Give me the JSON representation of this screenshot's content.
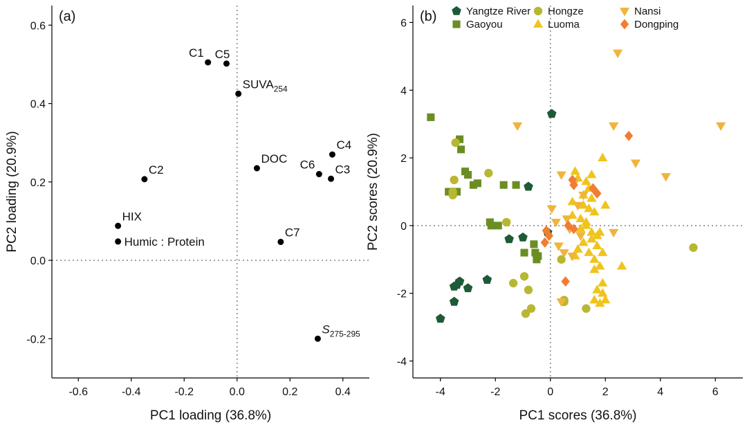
{
  "chart_data": [
    {
      "panel_label": "(a)",
      "type": "scatter",
      "xlabel": "PC1 loading (36.8%)",
      "ylabel": "PC2 loading (20.9%)",
      "xlim": [
        -0.7,
        0.5
      ],
      "ylim": [
        -0.3,
        0.65
      ],
      "xticks": [
        {
          "value": -0.6,
          "label": "-0.6"
        },
        {
          "value": -0.4,
          "label": "-0.4"
        },
        {
          "value": -0.2,
          "label": "-0.2"
        },
        {
          "value": 0.0,
          "label": "0.0"
        },
        {
          "value": 0.2,
          "label": "0.2"
        },
        {
          "value": 0.4,
          "label": "0.4"
        }
      ],
      "yticks": [
        {
          "value": -0.2,
          "label": "-0.2"
        },
        {
          "value": 0.0,
          "label": "0.0"
        },
        {
          "value": 0.2,
          "label": "0.2"
        },
        {
          "value": 0.4,
          "label": "0.4"
        },
        {
          "value": 0.6,
          "label": "0.6"
        }
      ],
      "reference_lines": {
        "x": 0,
        "y": 0
      },
      "points": [
        {
          "label": "C1",
          "x": -0.11,
          "y": 0.505,
          "label_pos": "above-left"
        },
        {
          "label": "C5",
          "x": -0.04,
          "y": 0.502,
          "label_pos": "above"
        },
        {
          "label": "SUVA",
          "sub": "254",
          "x": 0.005,
          "y": 0.425,
          "label_pos": "above-right"
        },
        {
          "label": "C2",
          "x": -0.35,
          "y": 0.207,
          "label_pos": "above-right"
        },
        {
          "label": "DOC",
          "x": 0.075,
          "y": 0.235,
          "label_pos": "above-right"
        },
        {
          "label": "C4",
          "x": 0.36,
          "y": 0.27,
          "label_pos": "above-right"
        },
        {
          "label": "C6",
          "x": 0.31,
          "y": 0.22,
          "label_pos": "above-left"
        },
        {
          "label": "C3",
          "x": 0.355,
          "y": 0.208,
          "label_pos": "above-right"
        },
        {
          "label": "HIX",
          "x": -0.45,
          "y": 0.088,
          "label_pos": "above-right"
        },
        {
          "label": "Humic : Protein",
          "x": -0.45,
          "y": 0.048,
          "label_pos": "right"
        },
        {
          "label": "C7",
          "x": 0.165,
          "y": 0.047,
          "label_pos": "above-right"
        },
        {
          "label": "S",
          "sub": "275-295",
          "x": 0.305,
          "y": -0.2,
          "label_pos": "above-right",
          "italic": true
        }
      ]
    },
    {
      "panel_label": "(b)",
      "type": "scatter",
      "xlabel": "PC1 scores (36.8%)",
      "ylabel": "PC2 scores (20.9%)",
      "xlim": [
        -5,
        7
      ],
      "ylim": [
        -4.5,
        6.5
      ],
      "xticks": [
        {
          "value": -4,
          "label": "-4"
        },
        {
          "value": -2,
          "label": "-2"
        },
        {
          "value": 0,
          "label": "0"
        },
        {
          "value": 2,
          "label": "2"
        },
        {
          "value": 4,
          "label": "4"
        },
        {
          "value": 6,
          "label": "6"
        }
      ],
      "yticks": [
        {
          "value": -4,
          "label": "-4"
        },
        {
          "value": -2,
          "label": "-2"
        },
        {
          "value": 0,
          "label": "0"
        },
        {
          "value": 2,
          "label": "2"
        },
        {
          "value": 4,
          "label": "4"
        },
        {
          "value": 6,
          "label": "6"
        }
      ],
      "reference_lines": {
        "x": 0,
        "y": 0
      },
      "legend_position": "top",
      "series": [
        {
          "name": "Yangtze River",
          "marker": "pentagon",
          "color": "#1e5a37",
          "x": [
            -4.0,
            -3.5,
            -3.4,
            -3.3,
            -3.5,
            -3.0,
            -2.3,
            -1.5,
            -1.0,
            -0.8,
            -0.1,
            0.05
          ],
          "y": [
            -2.75,
            -1.8,
            -1.75,
            -1.65,
            -2.25,
            -1.85,
            -1.6,
            -0.4,
            -0.35,
            1.15,
            -0.2,
            3.3
          ]
        },
        {
          "name": "Gaoyou",
          "marker": "square",
          "color": "#6b8e23",
          "x": [
            -4.35,
            -3.3,
            -3.25,
            -3.1,
            -3.0,
            -2.8,
            -2.65,
            -2.2,
            -2.15,
            -1.9,
            -1.7,
            -1.25,
            -0.95,
            -0.6,
            -0.55,
            -0.5,
            -0.45,
            -3.7,
            -3.5,
            -3.4
          ],
          "y": [
            3.2,
            2.55,
            2.25,
            1.6,
            1.5,
            1.2,
            1.25,
            0.1,
            0.0,
            0.0,
            1.2,
            1.2,
            -0.8,
            -0.55,
            -0.8,
            -1.0,
            -0.9,
            1.0,
            1.0,
            1.0
          ]
        },
        {
          "name": "Hongze",
          "marker": "circle",
          "color": "#b8b732",
          "x": [
            -3.45,
            -3.5,
            -3.55,
            -3.55,
            -2.25,
            -1.6,
            -1.35,
            -0.95,
            -0.9,
            -0.8,
            -0.7,
            0.4,
            0.5,
            0.5,
            1.3,
            5.2
          ],
          "y": [
            2.45,
            1.35,
            1.0,
            0.9,
            1.55,
            0.1,
            -1.7,
            -1.5,
            -2.6,
            -1.9,
            -2.45,
            -1.0,
            -2.2,
            -2.25,
            -2.45,
            -0.65
          ]
        },
        {
          "name": "Luoma",
          "marker": "triangle-up",
          "color": "#f0c41e",
          "x": [
            0.9,
            1.0,
            1.3,
            1.5,
            1.9,
            0.8,
            1.2,
            1.4,
            1.6,
            1.1,
            1.3,
            1.5,
            1.7,
            1.2,
            1.0,
            0.9,
            1.4,
            1.6,
            1.8,
            1.9,
            1.7,
            1.9,
            2.0,
            1.8,
            1.6,
            2.6,
            1.9,
            1.7,
            1.5,
            1.1,
            1.3,
            0.8,
            1.2,
            1.4,
            1.5,
            2.0,
            1.8,
            1.6
          ],
          "y": [
            1.6,
            1.4,
            1.3,
            1.5,
            2.0,
            0.7,
            0.6,
            0.5,
            0.4,
            0.2,
            0.0,
            -0.2,
            -0.3,
            -0.5,
            -0.7,
            -0.9,
            -0.8,
            -1.0,
            -1.2,
            -1.7,
            -1.9,
            -2.0,
            -2.2,
            -2.3,
            -2.2,
            -1.2,
            -0.8,
            -0.6,
            -0.4,
            -0.1,
            0.1,
            0.3,
            0.9,
            1.1,
            0.8,
            0.6,
            -0.2,
            -1.3
          ]
        },
        {
          "name": "Nansi",
          "marker": "triangle-down",
          "color": "#f0b43c",
          "x": [
            -1.2,
            2.45,
            2.3,
            6.2,
            3.1,
            4.2,
            2.3,
            0.05,
            0.4,
            0.5,
            0.8,
            1.2,
            0.6,
            0.9,
            0.3,
            1.1,
            0.2,
            0.7,
            1.0,
            0.4
          ],
          "y": [
            2.95,
            5.1,
            2.95,
            2.95,
            1.85,
            1.45,
            -0.2,
            0.5,
            1.5,
            -0.8,
            -0.9,
            0.9,
            0.2,
            1.3,
            -0.6,
            -0.3,
            0.1,
            -0.1,
            0.6,
            -2.25
          ]
        },
        {
          "name": "Dongping",
          "marker": "diamond",
          "color": "#f07d32",
          "x": [
            2.85,
            1.55,
            1.7,
            0.8,
            0.85,
            0.65,
            0.85,
            -0.15,
            -0.05,
            -0.2,
            0.55
          ],
          "y": [
            2.65,
            1.1,
            0.95,
            1.35,
            1.2,
            0.0,
            -0.1,
            -0.15,
            -0.3,
            -0.5,
            -1.65
          ]
        }
      ]
    }
  ]
}
